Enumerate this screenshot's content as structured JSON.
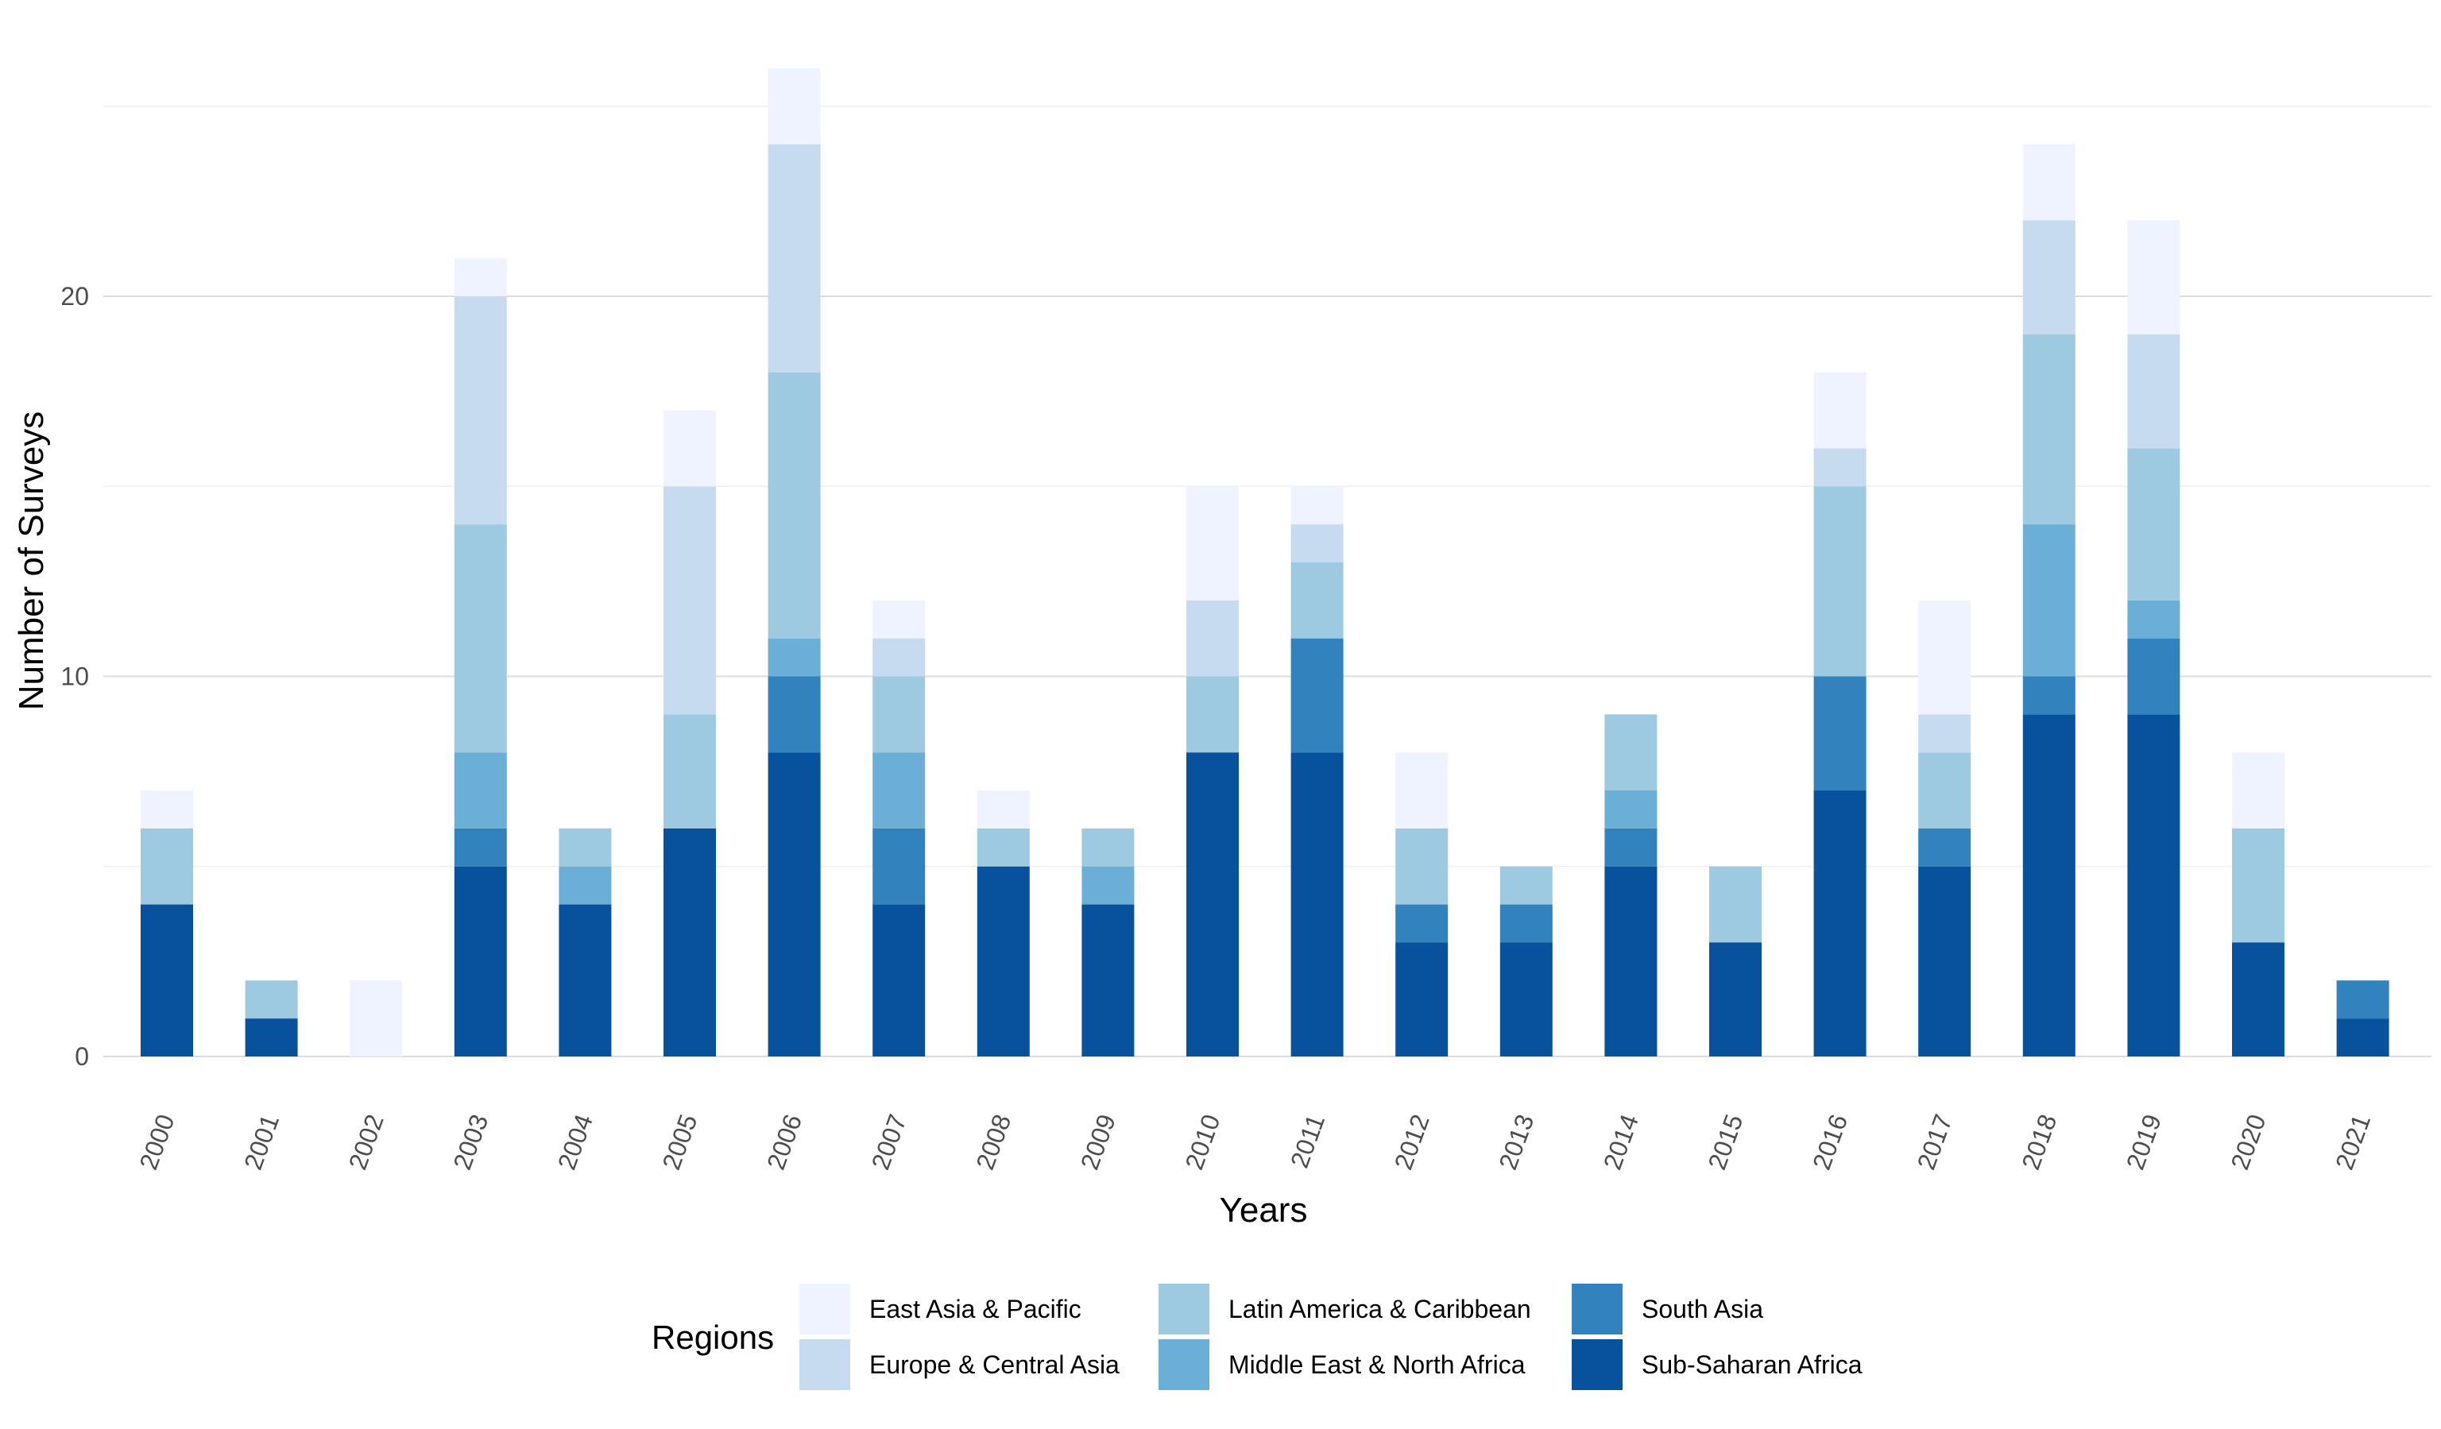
{
  "chart_data": {
    "type": "bar",
    "stacked": true,
    "categories": [
      "2000",
      "2001",
      "2002",
      "2003",
      "2004",
      "2005",
      "2006",
      "2007",
      "2008",
      "2009",
      "2010",
      "2011",
      "2012",
      "2013",
      "2014",
      "2015",
      "2016",
      "2017",
      "2018",
      "2019",
      "2020",
      "2021"
    ],
    "series": [
      {
        "name": "Sub-Saharan Africa",
        "color": "#08519C",
        "values": [
          4,
          1,
          0,
          5,
          4,
          6,
          8,
          4,
          5,
          4,
          8,
          8,
          3,
          3,
          5,
          3,
          7,
          5,
          9,
          9,
          3,
          1
        ]
      },
      {
        "name": "South Asia",
        "color": "#3182BD",
        "values": [
          0,
          0,
          0,
          1,
          0,
          0,
          2,
          2,
          0,
          0,
          0,
          3,
          1,
          1,
          1,
          0,
          3,
          1,
          1,
          2,
          0,
          1
        ]
      },
      {
        "name": "Middle East & North Africa",
        "color": "#6BAED6",
        "values": [
          0,
          0,
          0,
          2,
          1,
          0,
          1,
          2,
          0,
          1,
          0,
          0,
          0,
          0,
          1,
          0,
          0,
          0,
          4,
          1,
          0,
          0
        ]
      },
      {
        "name": "Latin America & Caribbean",
        "color": "#9ECAE1",
        "values": [
          2,
          1,
          0,
          6,
          1,
          3,
          7,
          2,
          1,
          1,
          2,
          2,
          2,
          1,
          2,
          2,
          5,
          2,
          5,
          4,
          3,
          0
        ]
      },
      {
        "name": "Europe & Central Asia",
        "color": "#C6DBEF",
        "values": [
          0,
          0,
          0,
          6,
          0,
          6,
          6,
          1,
          0,
          0,
          2,
          1,
          0,
          0,
          0,
          0,
          1,
          1,
          3,
          3,
          0,
          0
        ]
      },
      {
        "name": "East Asia & Pacific",
        "color": "#EFF3FF",
        "values": [
          1,
          0,
          2,
          1,
          0,
          2,
          2,
          1,
          1,
          0,
          3,
          1,
          2,
          0,
          0,
          0,
          2,
          3,
          2,
          3,
          2,
          0
        ]
      }
    ],
    "xlabel": "Years",
    "ylabel": "Number of Surveys",
    "ylim": [
      0,
      26
    ],
    "yticks": [
      0,
      10,
      20
    ],
    "grid": true,
    "legend": {
      "title": "Regions",
      "position": "bottom",
      "entries": [
        "East Asia & Pacific",
        "Europe & Central Asia",
        "Latin America & Caribbean",
        "Middle East & North Africa",
        "South Asia",
        "Sub-Saharan Africa"
      ]
    }
  }
}
